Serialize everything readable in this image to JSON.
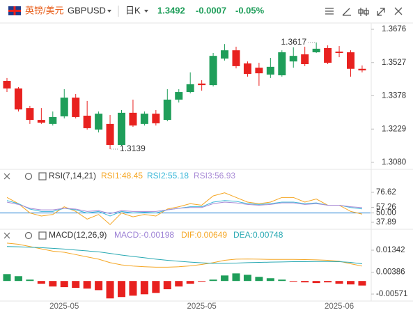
{
  "header": {
    "symbol_cn": "英镑/美元",
    "symbol": "GBPUSD",
    "period": "日K",
    "price": "1.3492",
    "change": "-0.0007",
    "change_pct": "-0.05%"
  },
  "chart_data": [
    {
      "type": "candlestick",
      "up_color": "#1f9e5a",
      "down_color": "#e8211f",
      "open": [
        1.3445,
        1.3411,
        1.3323,
        1.327,
        1.3252,
        1.3286,
        1.337,
        1.3289,
        1.3227,
        1.3252,
        1.3158,
        1.3302,
        1.3252,
        1.3298,
        1.327,
        1.3361,
        1.3395,
        1.3433,
        1.3426,
        1.3545,
        1.3582,
        1.3523,
        1.3504,
        1.3473,
        1.347,
        1.3532,
        1.3564,
        1.3573,
        1.3592,
        1.3576,
        1.3573,
        1.3499
      ],
      "high": [
        1.3458,
        1.3417,
        1.3333,
        1.3323,
        1.3308,
        1.3408,
        1.3386,
        1.3355,
        1.3308,
        1.3292,
        1.3314,
        1.3361,
        1.3308,
        1.3314,
        1.3408,
        1.3408,
        1.3483,
        1.3448,
        1.357,
        1.361,
        1.3598,
        1.3532,
        1.3526,
        1.3548,
        1.3582,
        1.3595,
        1.3598,
        1.3617,
        1.3604,
        1.3601,
        1.3582,
        1.3514
      ],
      "low": [
        1.3395,
        1.3308,
        1.3252,
        1.3252,
        1.3245,
        1.3277,
        1.3277,
        1.3227,
        1.3214,
        1.3139,
        1.3152,
        1.3239,
        1.3245,
        1.3245,
        1.3264,
        1.3348,
        1.3389,
        1.3401,
        1.342,
        1.3536,
        1.3501,
        1.3464,
        1.3423,
        1.3458,
        1.3464,
        1.3504,
        1.3511,
        1.357,
        1.352,
        1.3551,
        1.3464,
        1.3483
      ],
      "close": [
        1.3411,
        1.3317,
        1.327,
        1.3258,
        1.3283,
        1.337,
        1.3283,
        1.3233,
        1.3298,
        1.3158,
        1.3302,
        1.3245,
        1.3298,
        1.3255,
        1.3361,
        1.3395,
        1.343,
        1.3426,
        1.3557,
        1.3582,
        1.3511,
        1.3476,
        1.3479,
        1.3508,
        1.3573,
        1.3557,
        1.352,
        1.3589,
        1.3526,
        1.357,
        1.3499,
        1.3492
      ],
      "high_label": "1.3617",
      "low_label": "1.3139",
      "ylim": [
        1.3058,
        1.3698
      ],
      "yticks": [
        1.3676,
        1.3527,
        1.3378,
        1.3229,
        {
          "value": 1.308,
          "label": "1.3080"
        }
      ]
    },
    {
      "type": "line",
      "title": "RSI(7,14,21)",
      "series": [
        {
          "name": "RSI1:48.45",
          "color": "#f5a623",
          "values": [
            70,
            62,
            50,
            46,
            48,
            58,
            52,
            42,
            48,
            35,
            50,
            45,
            48,
            46,
            55,
            58,
            62,
            60,
            72,
            76,
            70,
            64,
            62,
            64,
            70,
            70,
            64,
            68,
            60,
            60,
            52,
            48.45
          ]
        },
        {
          "name": "RSI2:55.18",
          "color": "#3cb8d9",
          "values": [
            66,
            62,
            55,
            52,
            52,
            56,
            54,
            50,
            52,
            46,
            52,
            50,
            51,
            50,
            54,
            56,
            58,
            58,
            64,
            66,
            65,
            62,
            61,
            62,
            64,
            64,
            62,
            63,
            60,
            60,
            57,
            55.18
          ]
        },
        {
          "name": "RSI3:56.93",
          "color": "#a98bd6",
          "values": [
            64,
            61,
            56,
            54,
            54,
            56,
            55,
            52,
            53,
            49,
            53,
            52,
            52,
            52,
            54,
            56,
            57,
            57,
            62,
            64,
            63,
            61,
            60,
            61,
            63,
            63,
            61,
            62,
            60,
            60,
            58,
            56.93
          ]
        }
      ],
      "reference_lines": [
        {
          "value": 50,
          "color": "#3a8fd9"
        }
      ],
      "ylim": [
        31.6,
        89.2
      ],
      "yticks": [
        76.62,
        57.26,
        {
          "value": 50,
          "label": "50.00"
        },
        37.89
      ]
    },
    {
      "type": "combo",
      "title": "MACD(12,26,9)",
      "categories": [
        null,
        null,
        null,
        null,
        null,
        "2025-05",
        null,
        null,
        null,
        null,
        null,
        null,
        null,
        null,
        null,
        null,
        null,
        "2025-05",
        null,
        null,
        null,
        null,
        null,
        null,
        null,
        null,
        null,
        null,
        null,
        "2025-06",
        null,
        null
      ],
      "series": [
        {
          "name": "MACD:-0.00198",
          "kind": "bar",
          "color": "#9b7fd4",
          "up_color": "#1f9e5a",
          "down_color": "#e8211f",
          "values": [
            0.003,
            0.0021,
            0.0006,
            -0.0012,
            -0.0024,
            -0.0027,
            -0.003,
            -0.0033,
            -0.004,
            -0.0076,
            -0.007,
            -0.0064,
            -0.0058,
            -0.0052,
            -0.0036,
            -0.0024,
            -0.0012,
            -0.0003,
            0.0006,
            0.0024,
            0.0033,
            0.0027,
            0.0018,
            0.0012,
            0.0006,
            -0.0003,
            -0.0006,
            -0.0009,
            -0.0006,
            -0.0012,
            -0.0015,
            -0.00198
          ]
        },
        {
          "name": "DIF:0.00649",
          "kind": "line",
          "color": "#f5a623",
          "values": [
            0.0165,
            0.016,
            0.015,
            0.014,
            0.013,
            0.0125,
            0.0115,
            0.0105,
            0.0095,
            0.008,
            0.007,
            0.0065,
            0.0062,
            0.006,
            0.006,
            0.0062,
            0.0066,
            0.0072,
            0.008,
            0.009,
            0.0095,
            0.0096,
            0.0095,
            0.0094,
            0.0094,
            0.0094,
            0.0093,
            0.0092,
            0.009,
            0.0086,
            0.0075,
            0.00649
          ]
        },
        {
          "name": "DEA:0.00748",
          "kind": "line",
          "color": "#29a9b3",
          "values": [
            0.015,
            0.0149,
            0.0147,
            0.0145,
            0.0142,
            0.0139,
            0.0135,
            0.0131,
            0.0127,
            0.012,
            0.0113,
            0.0107,
            0.0101,
            0.0095,
            0.009,
            0.0086,
            0.0082,
            0.0079,
            0.0077,
            0.0077,
            0.0078,
            0.008,
            0.0081,
            0.0082,
            0.0083,
            0.0084,
            0.0084,
            0.0085,
            0.0085,
            0.0084,
            0.0081,
            0.00748
          ]
        }
      ],
      "ylim": [
        -0.00875,
        0.01858
      ],
      "yticks": [
        0.01342,
        0.00386,
        -0.00571
      ]
    }
  ]
}
